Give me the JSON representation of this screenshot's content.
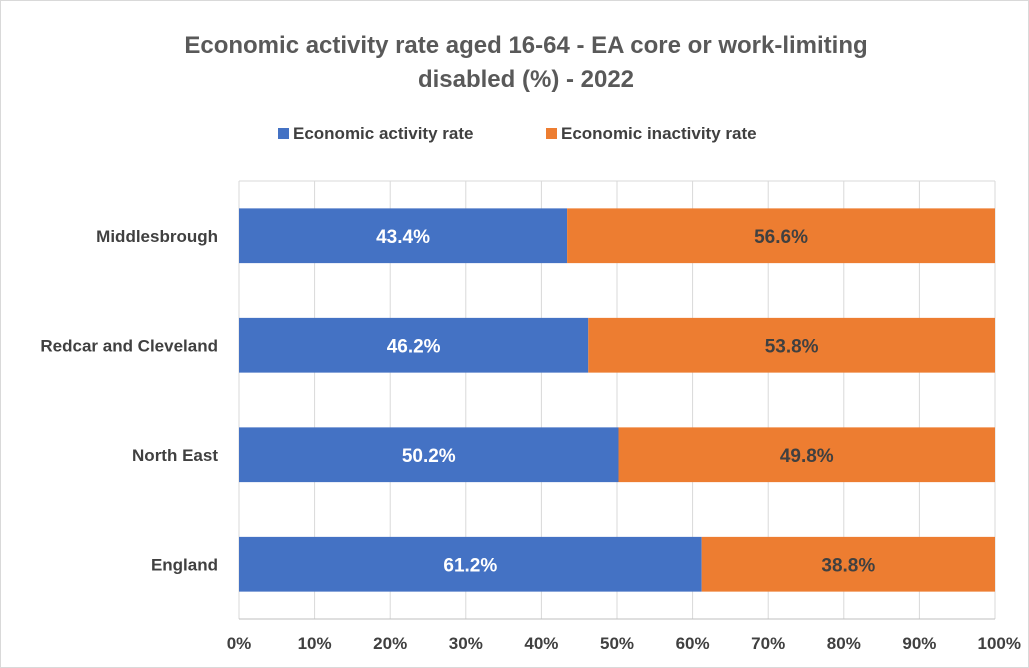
{
  "chart_data": {
    "type": "bar",
    "orientation": "horizontal",
    "stacked": true,
    "title_lines": [
      "Economic activity rate aged 16-64 - EA core or work-limiting",
      "disabled (%) - 2022"
    ],
    "categories": [
      "Middlesbrough",
      "Redcar and Cleveland",
      "North East",
      "England"
    ],
    "series": [
      {
        "name": "Economic activity rate",
        "color": "#4472c4",
        "values": [
          43.4,
          46.2,
          50.2,
          61.2
        ],
        "labels": [
          "43.4%",
          "46.2%",
          "50.2%",
          "61.2%"
        ]
      },
      {
        "name": "Economic inactivity rate",
        "color": "#ed7d31",
        "values": [
          56.6,
          53.8,
          49.8,
          38.8
        ],
        "labels": [
          "56.6%",
          "53.8%",
          "49.8%",
          "38.8%"
        ]
      }
    ],
    "xlim": [
      0,
      100
    ],
    "x_ticks": [
      "0%",
      "10%",
      "20%",
      "30%",
      "40%",
      "50%",
      "60%",
      "70%",
      "80%",
      "90%",
      "100%"
    ],
    "grid": true,
    "legend_position": "top"
  }
}
